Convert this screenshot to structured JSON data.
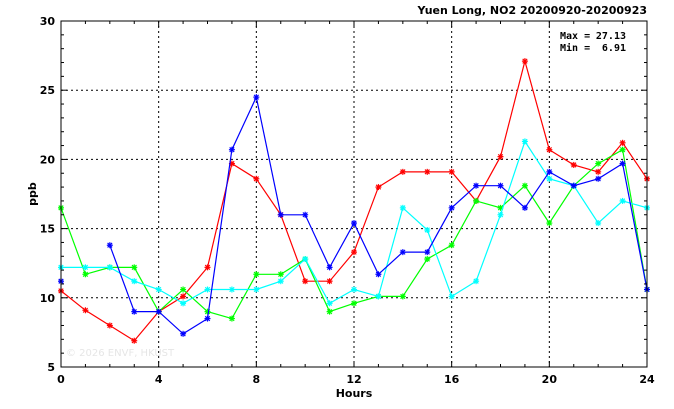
{
  "chart_data": {
    "type": "line",
    "title": "Yuen Long, NO2 20200920-20200923",
    "xlabel": "Hours",
    "ylabel": "ppb",
    "xlim": [
      0,
      24
    ],
    "ylim": [
      5,
      30
    ],
    "xticks": [
      0,
      4,
      8,
      12,
      16,
      20,
      24
    ],
    "yticks": [
      5,
      10,
      15,
      20,
      25,
      30
    ],
    "grid": true,
    "stats": {
      "max_label": "Max =",
      "max_value": "27.13",
      "min_label": "Min =",
      "min_value": "6.91"
    },
    "watermark": "© 2026  ENVF, HKUST",
    "x": [
      0,
      1,
      2,
      3,
      4,
      5,
      6,
      7,
      8,
      9,
      10,
      11,
      12,
      13,
      14,
      15,
      16,
      17,
      18,
      19,
      20,
      21,
      22,
      23,
      24
    ],
    "series": [
      {
        "color": "#ff0000",
        "marker": "asterisk",
        "values": [
          10.5,
          9.1,
          8.0,
          6.9,
          9.0,
          10.1,
          12.2,
          19.7,
          18.6,
          16.0,
          11.2,
          11.2,
          13.3,
          18.0,
          19.1,
          19.1,
          19.1,
          17.0,
          20.2,
          27.1,
          20.7,
          19.6,
          19.1,
          21.2,
          18.6
        ]
      },
      {
        "color": "#00ff00",
        "marker": "asterisk",
        "values": [
          16.5,
          11.7,
          12.2,
          12.2,
          9.0,
          10.6,
          9.0,
          8.5,
          11.7,
          11.7,
          12.8,
          9.0,
          9.6,
          10.1,
          10.1,
          12.8,
          13.8,
          17.0,
          16.5,
          18.1,
          15.4,
          18.1,
          19.7,
          20.7,
          10.6
        ]
      },
      {
        "color": "#00ffff",
        "marker": "asterisk",
        "values": [
          12.2,
          12.2,
          12.2,
          11.2,
          10.6,
          9.6,
          10.6,
          10.6,
          10.6,
          11.2,
          12.8,
          9.6,
          10.6,
          10.1,
          16.5,
          14.9,
          10.1,
          11.2,
          16.0,
          21.3,
          18.6,
          18.1,
          15.4,
          17.0,
          16.5
        ]
      },
      {
        "color": "#0000ff",
        "marker": "asterisk",
        "values": [
          11.2,
          null,
          13.8,
          9.0,
          9.0,
          7.4,
          8.5,
          20.7,
          24.5,
          16.0,
          16.0,
          12.2,
          15.4,
          11.7,
          13.3,
          13.3,
          16.5,
          18.1,
          18.1,
          16.5,
          19.1,
          18.1,
          18.6,
          19.7,
          10.6
        ]
      }
    ]
  }
}
